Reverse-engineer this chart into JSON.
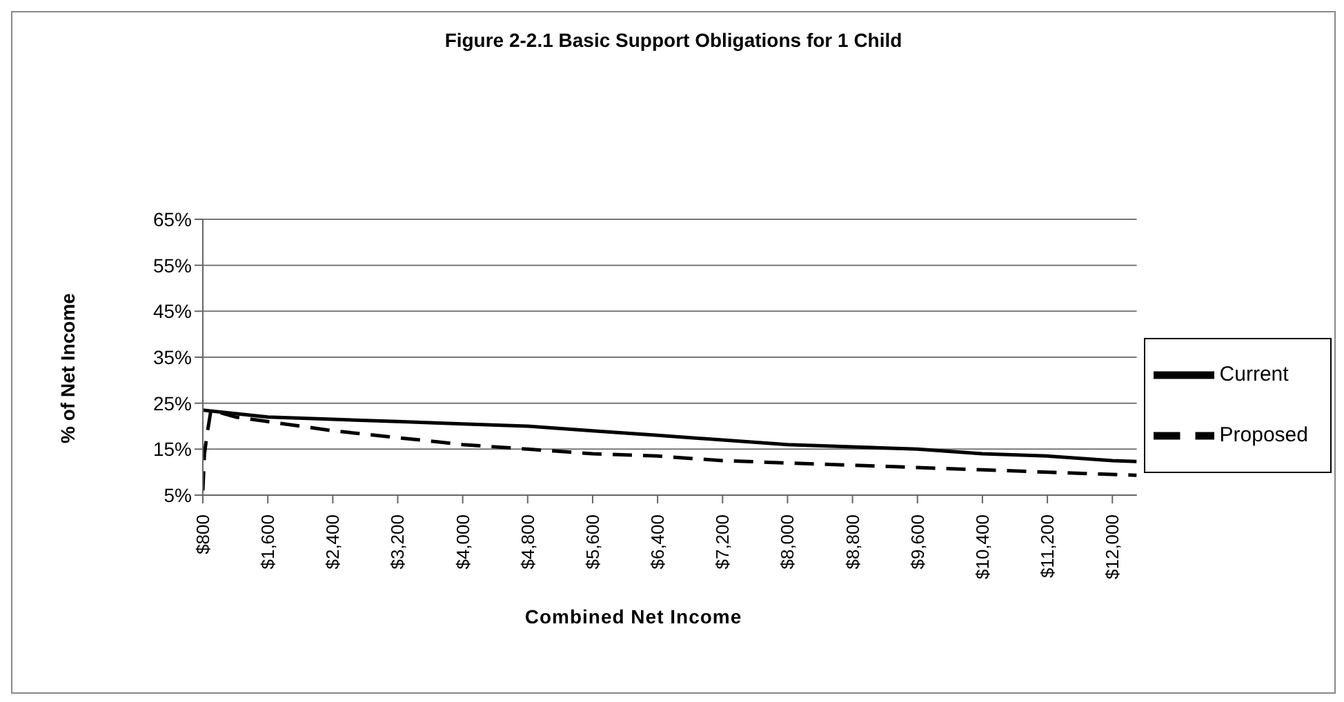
{
  "chart_data": {
    "type": "line",
    "title": "Figure 2-2.1 Basic Support Obligations for 1 Child",
    "xlabel": "Combined Net Income",
    "ylabel": "% of Net Income",
    "xlim": [
      800,
      12300
    ],
    "xticks": [
      {
        "value": 800,
        "label": "$800"
      },
      {
        "value": 1600,
        "label": "$1,600"
      },
      {
        "value": 2400,
        "label": "$2,400"
      },
      {
        "value": 3200,
        "label": "$3,200"
      },
      {
        "value": 4000,
        "label": "$4,000"
      },
      {
        "value": 4800,
        "label": "$4,800"
      },
      {
        "value": 5600,
        "label": "$5,600"
      },
      {
        "value": 6400,
        "label": "$6,400"
      },
      {
        "value": 7200,
        "label": "$7,200"
      },
      {
        "value": 8000,
        "label": "$8,000"
      },
      {
        "value": 8800,
        "label": "$8,800"
      },
      {
        "value": 9600,
        "label": "$9,600"
      },
      {
        "value": 10400,
        "label": "$10,400"
      },
      {
        "value": 11200,
        "label": "$11,200"
      },
      {
        "value": 12000,
        "label": "$12,000"
      }
    ],
    "ylim": [
      5,
      65
    ],
    "yticks": [
      {
        "value": 5,
        "label": "5%"
      },
      {
        "value": 15,
        "label": "15%"
      },
      {
        "value": 25,
        "label": "25%"
      },
      {
        "value": 35,
        "label": "35%"
      },
      {
        "value": 45,
        "label": "45%"
      },
      {
        "value": 55,
        "label": "55%"
      },
      {
        "value": 65,
        "label": "65%"
      }
    ],
    "grid": "y",
    "legend": "right",
    "series": [
      {
        "name": "Proposed",
        "color": "#000000",
        "line_style": "dashed",
        "x": [
          800,
          820,
          850,
          900,
          1200,
          1600,
          2000,
          2400,
          3200,
          4000,
          4800,
          5600,
          6400,
          7200,
          8000,
          8800,
          9600,
          10400,
          11200,
          12000,
          12300
        ],
        "values": [
          6,
          14,
          18,
          23.5,
          22,
          21,
          20,
          19,
          17.5,
          16,
          15,
          14,
          13.5,
          12.5,
          12,
          11.5,
          11,
          10.5,
          10,
          9.5,
          9.3
        ]
      },
      {
        "name": "Current",
        "color": "#000000",
        "line_style": "solid",
        "x": [
          800,
          1600,
          2400,
          3200,
          4000,
          4800,
          5600,
          6400,
          7200,
          8000,
          8800,
          9600,
          10400,
          11200,
          12000,
          12300
        ],
        "values": [
          23.5,
          22,
          21.5,
          21,
          20.5,
          20,
          19,
          18,
          17,
          16,
          15.5,
          15,
          14,
          13.5,
          12.5,
          12.3
        ]
      }
    ]
  }
}
